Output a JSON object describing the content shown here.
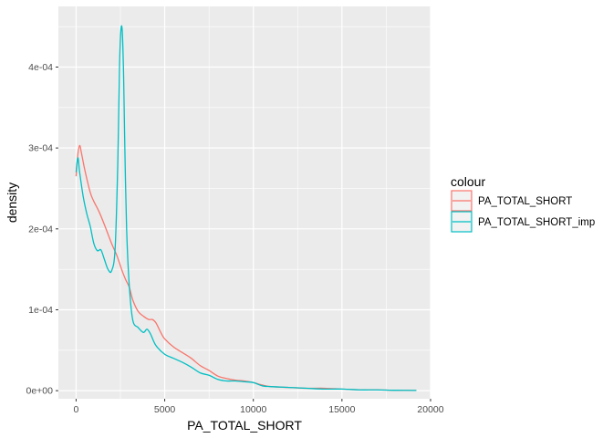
{
  "chart_data": {
    "type": "line",
    "title": "",
    "xlabel": "PA_TOTAL_SHORT",
    "ylabel": "density",
    "xlim": [
      -1000,
      20000
    ],
    "ylim": [
      -1e-05,
      0.000475
    ],
    "x_ticks": [
      0,
      5000,
      10000,
      15000,
      20000
    ],
    "x_tick_labels": [
      "0",
      "5000",
      "10000",
      "15000",
      "20000"
    ],
    "y_ticks": [
      0,
      0.0001,
      0.0002,
      0.0003,
      0.0004
    ],
    "y_tick_labels": [
      "0e+00",
      "1e-04",
      "2e-04",
      "3e-04",
      "4e-04"
    ],
    "grid": true,
    "legend": {
      "title": "colour",
      "position": "right",
      "entries": [
        {
          "label": "PA_TOTAL_SHORT",
          "color": "#F8766D"
        },
        {
          "label": "PA_TOTAL_SHORT_imp",
          "color": "#00BFC4"
        }
      ]
    },
    "series": [
      {
        "name": "PA_TOTAL_SHORT",
        "color": "#F8766D",
        "x": [
          0,
          100,
          200,
          300,
          500,
          800,
          1000,
          1300,
          1600,
          2000,
          2300,
          2600,
          2800,
          3000,
          3200,
          3500,
          3800,
          4100,
          4300,
          4500,
          4800,
          5000,
          5500,
          6000,
          6500,
          7000,
          7500,
          8000,
          8500,
          9000,
          9500,
          10000,
          10500,
          11000,
          12000,
          13000,
          14000,
          15000,
          16000,
          17000,
          18000,
          19200
        ],
        "y": [
          0.000265,
          0.000292,
          0.000303,
          0.000294,
          0.000272,
          0.000245,
          0.000234,
          0.000221,
          0.000205,
          0.000182,
          0.000167,
          0.000148,
          0.000137,
          0.000128,
          0.000112,
          9.8e-05,
          9.2e-05,
          8.8e-05,
          8.8e-05,
          8.4e-05,
          7.1e-05,
          6.4e-05,
          5.4e-05,
          4.7e-05,
          4e-05,
          3.1e-05,
          2.5e-05,
          1.8e-05,
          1.5e-05,
          1.3e-05,
          1.2e-05,
          1e-05,
          7e-06,
          5e-06,
          4e-06,
          3e-06,
          3e-06,
          2e-06,
          1e-06,
          1e-06,
          5e-07,
          3e-07
        ]
      },
      {
        "name": "PA_TOTAL_SHORT_imp",
        "color": "#00BFC4",
        "x": [
          0,
          100,
          200,
          400,
          600,
          800,
          1000,
          1200,
          1400,
          1600,
          1800,
          2000,
          2200,
          2350,
          2450,
          2520,
          2600,
          2680,
          2750,
          2850,
          3000,
          3200,
          3500,
          3800,
          4000,
          4200,
          4500,
          5000,
          5500,
          6000,
          6500,
          7000,
          7500,
          8000,
          8500,
          9000,
          9500,
          10000,
          10500,
          11000,
          12000,
          13000,
          14000,
          15000,
          16000,
          17000,
          18000,
          19200
        ],
        "y": [
          0.00027,
          0.000288,
          0.00027,
          0.00024,
          0.000219,
          0.000203,
          0.000182,
          0.000173,
          0.000174,
          0.000162,
          0.00015,
          0.000148,
          0.000175,
          0.00028,
          0.0004,
          0.000443,
          0.000446,
          0.00039,
          0.0003,
          0.0002,
          0.00013,
          8.7e-05,
          7.8e-05,
          7.2e-05,
          7.6e-05,
          7e-05,
          5.6e-05,
          4.5e-05,
          4e-05,
          3.5e-05,
          2.9e-05,
          2.2e-05,
          1.9e-05,
          1.4e-05,
          1.2e-05,
          1.2e-05,
          1.1e-05,
          1e-05,
          6e-06,
          5e-06,
          4e-06,
          3e-06,
          2e-06,
          2e-06,
          1e-06,
          1e-06,
          5e-07,
          3e-07
        ]
      }
    ]
  }
}
